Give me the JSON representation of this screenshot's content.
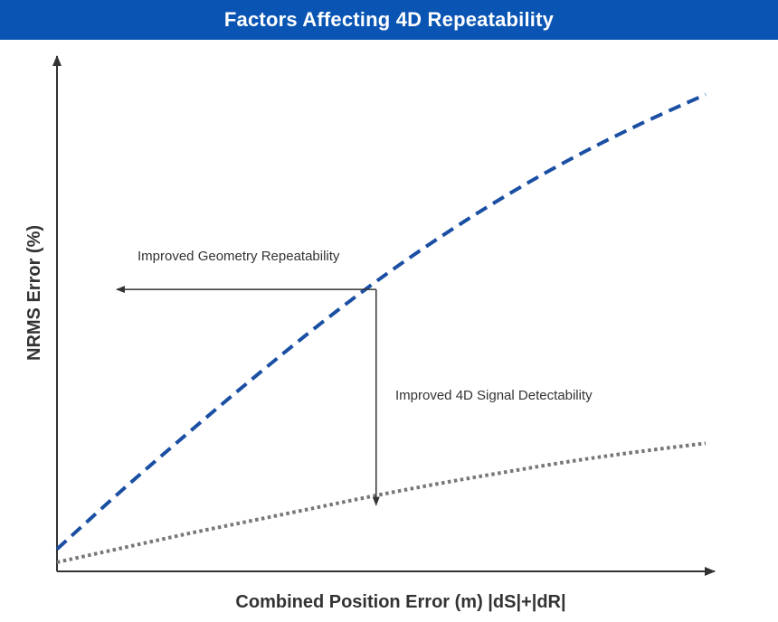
{
  "colors": {
    "title_bar": "#0a55b4",
    "title_text": "#ffffff",
    "axis": "#333333",
    "text": "#333333",
    "series_dashed": "#1a4fa3",
    "series_dotted": "#777777",
    "arrow": "#333333"
  },
  "chart_data": {
    "type": "line",
    "title": "Factors Affecting 4D Repeatability",
    "xlabel": "Combined Position Error (m) |dS|+|dR|",
    "ylabel": "NRMS Error (%)",
    "xlim": [
      0,
      100
    ],
    "ylim": [
      0,
      100
    ],
    "x_ticks": [],
    "y_ticks": [],
    "grid": false,
    "legend": "none",
    "series": [
      {
        "style": "dashed",
        "color": "#1a4fa3",
        "x": [
          0,
          10,
          20,
          30,
          40,
          50,
          60,
          70,
          80,
          90,
          100
        ],
        "y": [
          4.4,
          16.0,
          27.1,
          37.9,
          48.3,
          58.0,
          66.8,
          74.8,
          82.0,
          88.4,
          94.2
        ]
      },
      {
        "style": "dotted",
        "color": "#777777",
        "x": [
          0,
          10,
          20,
          30,
          40,
          50,
          60,
          70,
          80,
          90,
          100
        ],
        "y": [
          1.8,
          4.6,
          7.4,
          10.0,
          12.6,
          15.2,
          17.6,
          19.8,
          21.9,
          23.7,
          25.3
        ]
      }
    ],
    "annotations": [
      {
        "text": "Improved Geometry Repeatability",
        "arrow_from": [
          49.2,
          55.7
        ],
        "arrow_to": [
          9.2,
          55.7
        ]
      },
      {
        "text": "Improved 4D Signal Detectability",
        "arrow_from": [
          49.2,
          55.7
        ],
        "arrow_to": [
          49.2,
          13.1
        ]
      }
    ]
  }
}
